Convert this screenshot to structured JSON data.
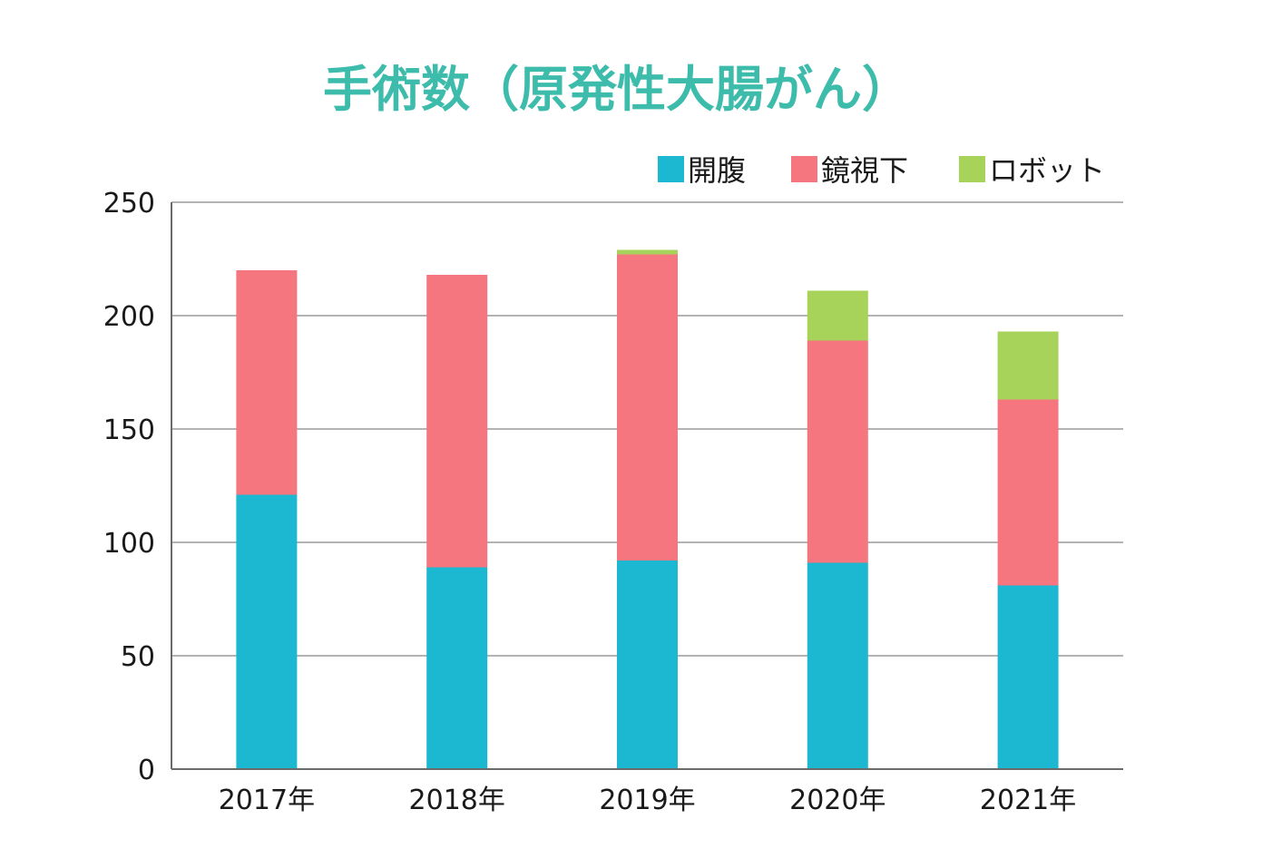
{
  "chart_data": {
    "type": "bar",
    "stacked": true,
    "title": "手術数（原発性大腸がん）",
    "title_color": "#3dbcac",
    "categories": [
      "2017年",
      "2018年",
      "2019年",
      "2020年",
      "2021年"
    ],
    "series": [
      {
        "name": "開腹",
        "color": "#1cb8d2",
        "values": [
          121,
          89,
          92,
          91,
          81
        ]
      },
      {
        "name": "鏡視下",
        "color": "#f5767f",
        "values": [
          99,
          129,
          135,
          98,
          82
        ]
      },
      {
        "name": "ロボット",
        "color": "#a8d35a",
        "values": [
          0,
          0,
          2,
          22,
          30
        ]
      }
    ],
    "ylim": [
      0,
      250
    ],
    "yticks": [
      0,
      50,
      100,
      150,
      200,
      250
    ],
    "xlabel": "",
    "ylabel": "",
    "grid": true,
    "legend_position": "top-right"
  }
}
